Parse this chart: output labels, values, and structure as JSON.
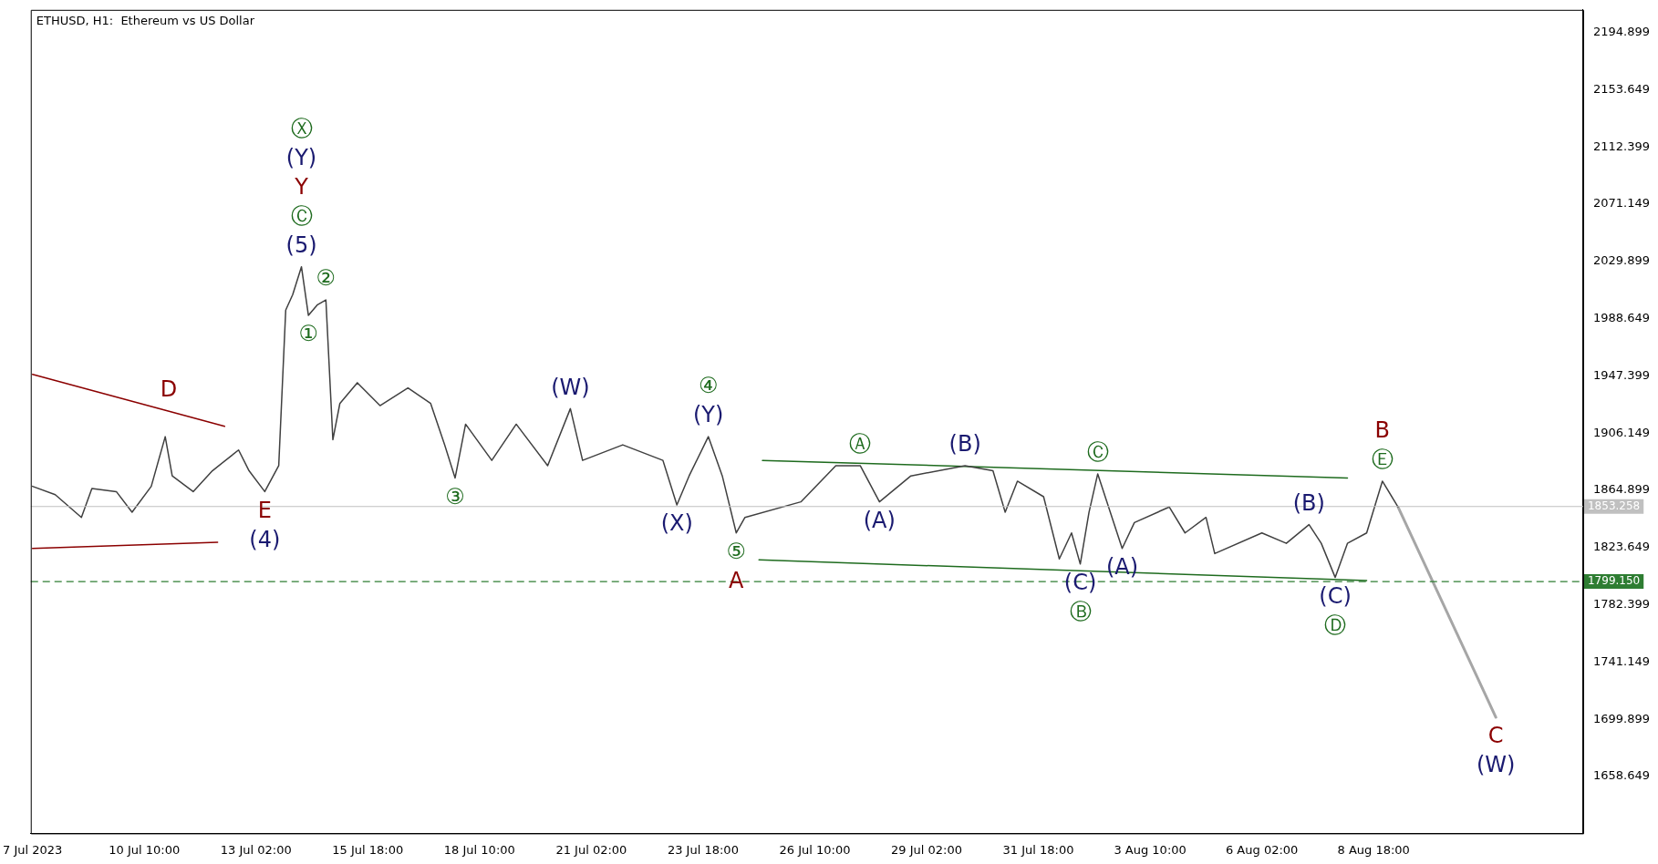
{
  "chart_data": {
    "type": "line",
    "title": "ETHUSD, H1:  Ethereum vs US Dollar",
    "marker": "none",
    "grid": false,
    "legend": false,
    "xlim": [
      "2023-07-07T17:00",
      "2023-08-13T18:00"
    ],
    "xticks": [
      {
        "value": "2023-07-07T18:00",
        "label": "7 Jul 2023"
      },
      {
        "value": "2023-07-10T10:00",
        "label": "10 Jul 10:00"
      },
      {
        "value": "2023-07-13T02:00",
        "label": "13 Jul 02:00"
      },
      {
        "value": "2023-07-15T18:00",
        "label": "15 Jul 18:00"
      },
      {
        "value": "2023-07-18T10:00",
        "label": "18 Jul 10:00"
      },
      {
        "value": "2023-07-21T02:00",
        "label": "21 Jul 02:00"
      },
      {
        "value": "2023-07-23T18:00",
        "label": "23 Jul 18:00"
      },
      {
        "value": "2023-07-26T10:00",
        "label": "26 Jul 10:00"
      },
      {
        "value": "2023-07-29T02:00",
        "label": "29 Jul 02:00"
      },
      {
        "value": "2023-07-31T18:00",
        "label": "31 Jul 18:00"
      },
      {
        "value": "2023-08-03T10:00",
        "label": "3 Aug 10:00"
      },
      {
        "value": "2023-08-06T02:00",
        "label": "6 Aug 02:00"
      },
      {
        "value": "2023-08-08T18:00",
        "label": "8 Aug 18:00"
      }
    ],
    "ylim": [
      1617.6,
      2211.3
    ],
    "yticks": [
      {
        "value": 2194.899,
        "label": "2194.899"
      },
      {
        "value": 2153.649,
        "label": "2153.649"
      },
      {
        "value": 2112.399,
        "label": "2112.399"
      },
      {
        "value": 2071.149,
        "label": "2071.149"
      },
      {
        "value": 2029.899,
        "label": "2029.899"
      },
      {
        "value": 1988.649,
        "label": "1988.649"
      },
      {
        "value": 1947.399,
        "label": "1947.399"
      },
      {
        "value": 1906.149,
        "label": "1906.149"
      },
      {
        "value": 1864.899,
        "label": "1864.899"
      },
      {
        "value": 1823.649,
        "label": "1823.649"
      },
      {
        "value": 1782.399,
        "label": "1782.399"
      },
      {
        "value": 1741.149,
        "label": "1741.149"
      },
      {
        "value": 1699.899,
        "label": "1699.899"
      },
      {
        "value": 1658.649,
        "label": "1658.649"
      }
    ],
    "series": [
      {
        "color": "#404040",
        "x": [
          "2023-07-07T18:00",
          "2023-07-08T07:00",
          "2023-07-08T22:00",
          "2023-07-09T04:00",
          "2023-07-09T18:00",
          "2023-07-10T03:00",
          "2023-07-10T14:00",
          "2023-07-10T22:00",
          "2023-07-11T02:00",
          "2023-07-11T14:00",
          "2023-07-12T01:00",
          "2023-07-12T16:00",
          "2023-07-12T22:00",
          "2023-07-13T07:00",
          "2023-07-13T15:00",
          "2023-07-13T19:00",
          "2023-07-13T23:00",
          "2023-07-14T04:00",
          "2023-07-14T08:00",
          "2023-07-14T13:00",
          "2023-07-14T18:00",
          "2023-07-14T22:00",
          "2023-07-15T02:00",
          "2023-07-15T12:00",
          "2023-07-16T01:00",
          "2023-07-16T17:00",
          "2023-07-17T06:00",
          "2023-07-17T14:00",
          "2023-07-17T20:00",
          "2023-07-18T02:00",
          "2023-07-18T17:00",
          "2023-07-19T07:00",
          "2023-07-20T01:00",
          "2023-07-20T14:00",
          "2023-07-20T21:00",
          "2023-07-21T20:00",
          "2023-07-22T19:00",
          "2023-07-23T03:00",
          "2023-07-23T10:00",
          "2023-07-23T21:00",
          "2023-07-24T05:00",
          "2023-07-24T13:00",
          "2023-07-24T18:00",
          "2023-07-26T02:00",
          "2023-07-26T22:00",
          "2023-07-27T12:00",
          "2023-07-27T23:00",
          "2023-07-28T17:00",
          "2023-07-30T00:00",
          "2023-07-30T16:00",
          "2023-07-30T23:00",
          "2023-07-31T06:00",
          "2023-07-31T21:00",
          "2023-08-01T06:00",
          "2023-08-01T13:00",
          "2023-08-01T18:00",
          "2023-08-01T23:00",
          "2023-08-02T04:00",
          "2023-08-02T18:00",
          "2023-08-03T01:00",
          "2023-08-03T21:00",
          "2023-08-04T06:00",
          "2023-08-04T18:00",
          "2023-08-04T23:00",
          "2023-08-06T02:00",
          "2023-08-06T16:00",
          "2023-08-07T05:00",
          "2023-08-07T12:00",
          "2023-08-07T20:00",
          "2023-08-08T03:00",
          "2023-08-08T14:00",
          "2023-08-08T23:00",
          "2023-08-09T08:00"
        ],
        "values": [
          1867.8,
          1861.8,
          1845.4,
          1866.3,
          1864,
          1849.1,
          1867.8,
          1903.6,
          1875.3,
          1864,
          1879,
          1894,
          1879,
          1864,
          1882.7,
          1994.8,
          2006,
          2026.1,
          1991,
          1998.5,
          2002.2,
          1901.4,
          1927.5,
          1942.5,
          1926,
          1938.7,
          1927.5,
          1897.7,
          1873.8,
          1912.6,
          1886.5,
          1912.6,
          1882.7,
          1923.8,
          1886.5,
          1897.7,
          1886.5,
          1854.4,
          1875.3,
          1903.6,
          1875.3,
          1834.2,
          1845.4,
          1856.6,
          1882.7,
          1882.7,
          1856.6,
          1875.3,
          1882.7,
          1879,
          1849.1,
          1871.5,
          1860.3,
          1815.5,
          1834.2,
          1811.8,
          1849.1,
          1876.8,
          1823,
          1841.7,
          1852.9,
          1834.2,
          1845.4,
          1819.3,
          1834.2,
          1826.7,
          1840.2,
          1826.7,
          1802.1,
          1826.7,
          1834.2,
          1871.5,
          1852.9
        ]
      },
      {
        "color": "#a6a6a6",
        "x": [
          "2023-08-09T08:00",
          "2023-08-11T16:00"
        ],
        "values": [
          1852.9,
          1701.3
        ]
      },
      {
        "color": "#8b0000",
        "x": [
          "2023-07-07T18:00",
          "2023-07-12T08:00"
        ],
        "values": [
          1948.5,
          1911.1
        ]
      },
      {
        "color": "#8b0000",
        "x": [
          "2023-07-07T18:00",
          "2023-07-12T04:00"
        ],
        "values": [
          1823,
          1827.5
        ]
      },
      {
        "color": "#1e6b1e",
        "x": [
          "2023-07-25T04:00",
          "2023-08-08T03:00"
        ],
        "values": [
          1886.5,
          1873.8
        ]
      },
      {
        "color": "#1e6b1e",
        "x": [
          "2023-07-25T02:00",
          "2023-08-08T14:00"
        ],
        "values": [
          1814.8,
          1799.8
        ]
      }
    ],
    "ref_lines": [
      {
        "axis": "y",
        "value": 1853.258,
        "label": "1853.258",
        "color": "#c0c0c0",
        "line_style": "solid"
      },
      {
        "axis": "y",
        "value": 1799.15,
        "label": "1799.150",
        "color": "#2e7d32",
        "line_style": "dashed"
      }
    ],
    "annotations": [
      {
        "text": "(5)",
        "x": "2023-07-14T04:00",
        "y": 2026.1
      },
      {
        "text": "Ⓒ",
        "x": "2023-07-14T04:00",
        "y": 2026.1
      },
      "Y",
      "(Y)",
      "Ⓧ",
      {
        "text": "②",
        "x": "2023-07-14T18:00",
        "y": 2002.2
      },
      {
        "text": "①",
        "x": "2023-07-14T08:00",
        "y": 1991
      },
      {
        "text": "D",
        "x": "2023-07-11T00:00",
        "y": 1922
      },
      {
        "text": "E",
        "x": "2023-07-13T07:00",
        "y": 1864
      },
      {
        "text": "(4)",
        "x": "2023-07-13T07:00",
        "y": 1864
      },
      {
        "text": "③",
        "x": "2023-07-17T20:00",
        "y": 1873.8
      },
      {
        "text": "(W)",
        "x": "2023-07-20T14:00",
        "y": 1923.8
      },
      {
        "text": "(X)",
        "x": "2023-07-23T03:00",
        "y": 1854.4
      },
      {
        "text": "(Y)",
        "x": "2023-07-23T21:00",
        "y": 1903.6
      },
      {
        "text": "④",
        "x": "2023-07-23T21:00",
        "y": 1903.6
      },
      {
        "text": "⑤",
        "x": "2023-07-24T13:00",
        "y": 1834.2
      },
      {
        "text": "A",
        "x": "2023-07-24T13:00",
        "y": 1834.2
      },
      {
        "text": "Ⓐ",
        "x": "2023-07-27T12:00",
        "y": 1882.7
      },
      {
        "text": "(A)",
        "x": "2023-07-27T23:00",
        "y": 1856.6
      },
      {
        "text": "(B)",
        "x": "2023-07-30T00:00",
        "y": 1882.7
      },
      {
        "text": "Ⓒ",
        "x": "2023-08-02T04:00",
        "y": 1876.8
      },
      {
        "text": "(C)",
        "x": "2023-08-01T18:00",
        "y": 1811.8
      },
      {
        "text": "Ⓑ",
        "x": "2023-08-01T18:00",
        "y": 1811.8
      },
      {
        "text": "(A)",
        "x": "2023-08-02T18:00",
        "y": 1823
      },
      {
        "text": "(B)",
        "x": "2023-08-07T05:00",
        "y": 1840.2
      },
      {
        "text": "(C)",
        "x": "2023-08-07T20:00",
        "y": 1802.1
      },
      {
        "text": "Ⓓ",
        "x": "2023-08-07T20:00",
        "y": 1802.1
      },
      {
        "text": "Ⓔ",
        "x": "2023-08-08T23:00",
        "y": 1871.5
      },
      {
        "text": "B",
        "x": "2023-08-08T23:00",
        "y": 1871.5
      },
      {
        "text": "C",
        "x": "2023-08-11T16:00",
        "y": 1701.3
      },
      {
        "text": "(W)",
        "x": "2023-08-11T16:00",
        "y": 1701.3
      }
    ]
  }
}
